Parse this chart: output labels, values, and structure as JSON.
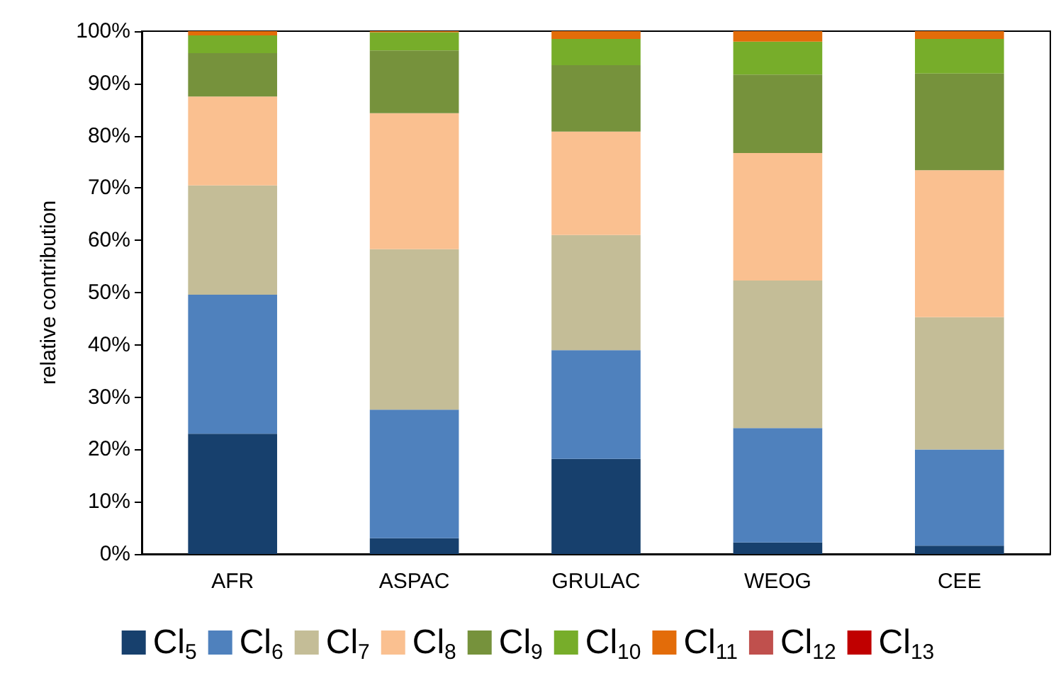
{
  "chart_data": {
    "type": "bar",
    "stacked": true,
    "ylabel": "relative contribution",
    "categories": [
      "AFR",
      "ASPAC",
      "GRULAC",
      "WEOG",
      "CEE"
    ],
    "series": [
      {
        "name": "Cl$_{5}$",
        "color": "#17406d",
        "values": [
          23,
          3,
          18.2,
          2.2,
          1.6
        ]
      },
      {
        "name": "Cl$_{6}$",
        "color": "#4f81bd",
        "values": [
          26.6,
          24.6,
          20.8,
          21.9,
          18.4
        ]
      },
      {
        "name": "Cl$_{7}$",
        "color": "#c4bd97",
        "values": [
          20.9,
          30.7,
          22,
          28.2,
          25.3
        ]
      },
      {
        "name": "Cl$_{8}$",
        "color": "#fac090",
        "values": [
          17,
          26,
          19.8,
          24.4,
          28.1
        ]
      },
      {
        "name": "Cl$_{9}$",
        "color": "#76923c",
        "values": [
          8.3,
          12,
          12.7,
          15,
          18.5
        ]
      },
      {
        "name": "Cl$_{10}$",
        "color": "#77ad2a",
        "values": [
          3.4,
          3.5,
          5,
          6.3,
          6.6
        ]
      },
      {
        "name": "Cl$_{11}$",
        "color": "#e36c09",
        "values": [
          0.8,
          0.2,
          1.5,
          2,
          1.5
        ]
      },
      {
        "name": "Cl$_{12}$",
        "color": "#c0504d",
        "values": [
          0,
          0,
          0,
          0,
          0
        ]
      },
      {
        "name": "Cl$_{13}$",
        "color": "#c00000",
        "values": [
          0,
          0,
          0,
          0,
          0
        ]
      }
    ],
    "ylim": [
      0,
      100
    ],
    "yticks": [
      {
        "value": 0,
        "label": "0%"
      },
      {
        "value": 10,
        "label": "10%"
      },
      {
        "value": 20,
        "label": "20%"
      },
      {
        "value": 30,
        "label": "30%"
      },
      {
        "value": 40,
        "label": "40%"
      },
      {
        "value": 50,
        "label": "50%"
      },
      {
        "value": 60,
        "label": "60%"
      },
      {
        "value": 70,
        "label": "70%"
      },
      {
        "value": 80,
        "label": "80%"
      },
      {
        "value": 90,
        "label": "90%"
      },
      {
        "value": 100,
        "label": "100%"
      }
    ],
    "grid": false,
    "legend": "bottom"
  }
}
